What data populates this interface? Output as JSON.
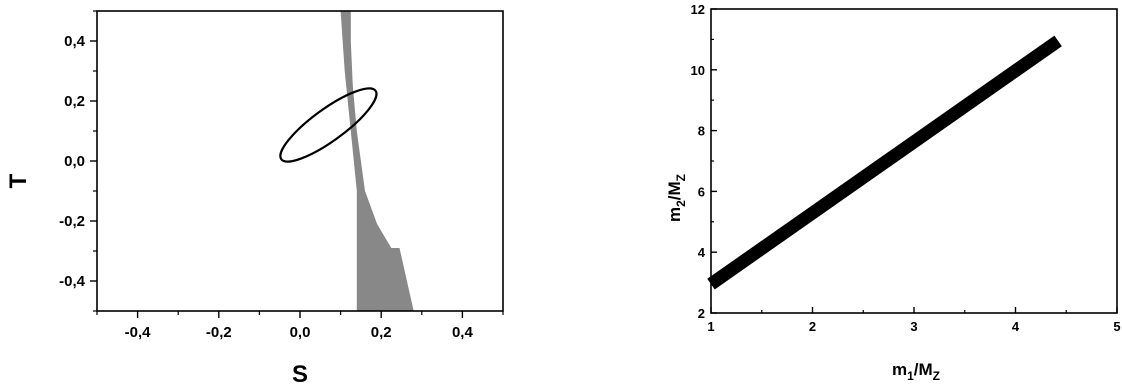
{
  "chart_data": [
    {
      "type": "scatter",
      "xlabel": "S",
      "ylabel": "T",
      "xlim": [
        -0.5,
        0.5
      ],
      "ylim": [
        -0.5,
        0.5
      ],
      "x_ticks": [
        "-0,4",
        "-0,2",
        "0,0",
        "0,2",
        "0,4"
      ],
      "y_ticks": [
        "-0,4",
        "-0,2",
        "0,0",
        "0,2",
        "0,4"
      ],
      "grid": false,
      "colors": {
        "region": "#888888",
        "ellipse": "#000000"
      },
      "ellipse": {
        "center_x": 0.07,
        "center_y": 0.12,
        "semi_major": 0.165,
        "semi_minor": 0.045,
        "angle_deg": 36
      },
      "allowed_region": {
        "left_boundary": [
          [
            0.1,
            0.5
          ],
          [
            0.11,
            0.3
          ],
          [
            0.125,
            0.1
          ],
          [
            0.14,
            -0.1
          ],
          [
            0.14,
            -0.3
          ],
          [
            0.14,
            -0.5
          ]
        ],
        "right_boundary": [
          [
            0.28,
            -0.5
          ],
          [
            0.26,
            -0.38
          ],
          [
            0.245,
            -0.29
          ],
          [
            0.225,
            -0.29
          ],
          [
            0.19,
            -0.21
          ],
          [
            0.16,
            -0.1
          ],
          [
            0.15,
            0.0
          ],
          [
            0.14,
            0.1
          ],
          [
            0.13,
            0.25
          ],
          [
            0.125,
            0.4
          ],
          [
            0.125,
            0.5
          ]
        ]
      }
    },
    {
      "type": "line",
      "xlabel_main": "m",
      "xlabel_sub": "1",
      "xlabel_rest": "/M",
      "xlabel_sub2": "Z",
      "ylabel_main": "m",
      "ylabel_sub": "2",
      "ylabel_rest": "/M",
      "ylabel_sub2": "Z",
      "xlim": [
        1,
        5
      ],
      "ylim": [
        2,
        12
      ],
      "x_ticks": [
        "1",
        "2",
        "3",
        "4",
        "5"
      ],
      "y_ticks": [
        "2",
        "4",
        "6",
        "8",
        "10",
        "12"
      ],
      "grid": false,
      "series": [
        {
          "x": [
            1.0,
            4.42
          ],
          "y": [
            2.95,
            10.95
          ],
          "color": "#000000"
        }
      ]
    }
  ]
}
